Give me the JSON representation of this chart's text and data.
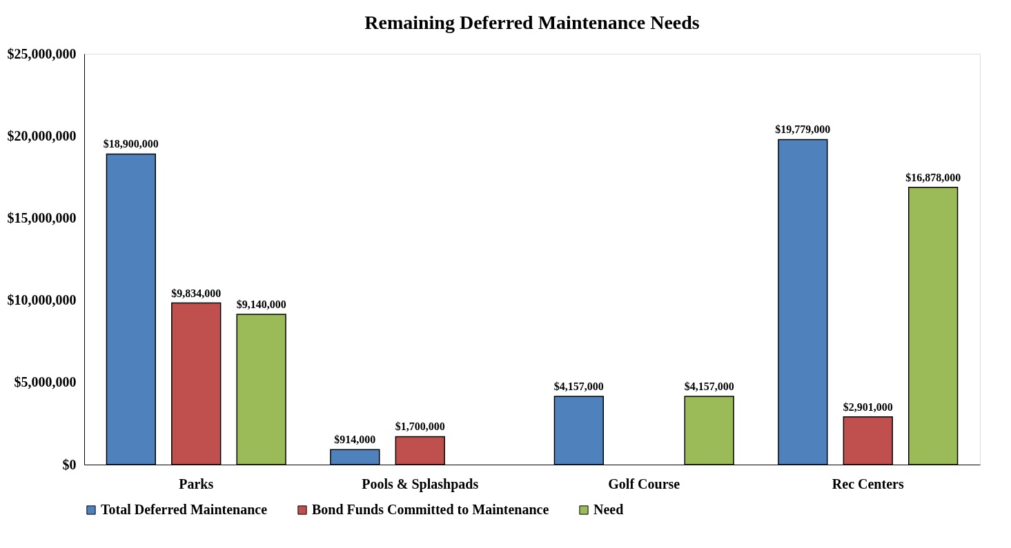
{
  "chart_data": {
    "type": "bar",
    "title": "Remaining Deferred Maintenance Needs",
    "categories": [
      "Parks",
      "Pools & Splashpads",
      "Golf Course",
      "Rec Centers"
    ],
    "series": [
      {
        "name": "Total Deferred Maintenance",
        "color": "#4f81bd",
        "values": [
          18900000,
          914000,
          4157000,
          19779000
        ],
        "value_labels": [
          "$18,900,000",
          "$914,000",
          "$4,157,000",
          "$19,779,000"
        ]
      },
      {
        "name": "Bond Funds Committed to Maintenance",
        "color": "#c0504d",
        "values": [
          9834000,
          1700000,
          null,
          2901000
        ],
        "value_labels": [
          "$9,834,000",
          "$1,700,000",
          null,
          "$2,901,000"
        ]
      },
      {
        "name": "Need",
        "color": "#9bbb59",
        "values": [
          9140000,
          null,
          4157000,
          16878000
        ],
        "value_labels": [
          "$9,140,000",
          null,
          "$4,157,000",
          "$16,878,000"
        ]
      }
    ],
    "ylim": [
      0,
      25000000
    ],
    "yticks": [
      {
        "value": 0,
        "label": "$0"
      },
      {
        "value": 5000000,
        "label": "$5,000,000"
      },
      {
        "value": 10000000,
        "label": "$10,000,000"
      },
      {
        "value": 15000000,
        "label": "$15,000,000"
      },
      {
        "value": 20000000,
        "label": "$20,000,000"
      },
      {
        "value": 25000000,
        "label": "$25,000,000"
      }
    ],
    "grid": false,
    "legend": "bottom"
  }
}
